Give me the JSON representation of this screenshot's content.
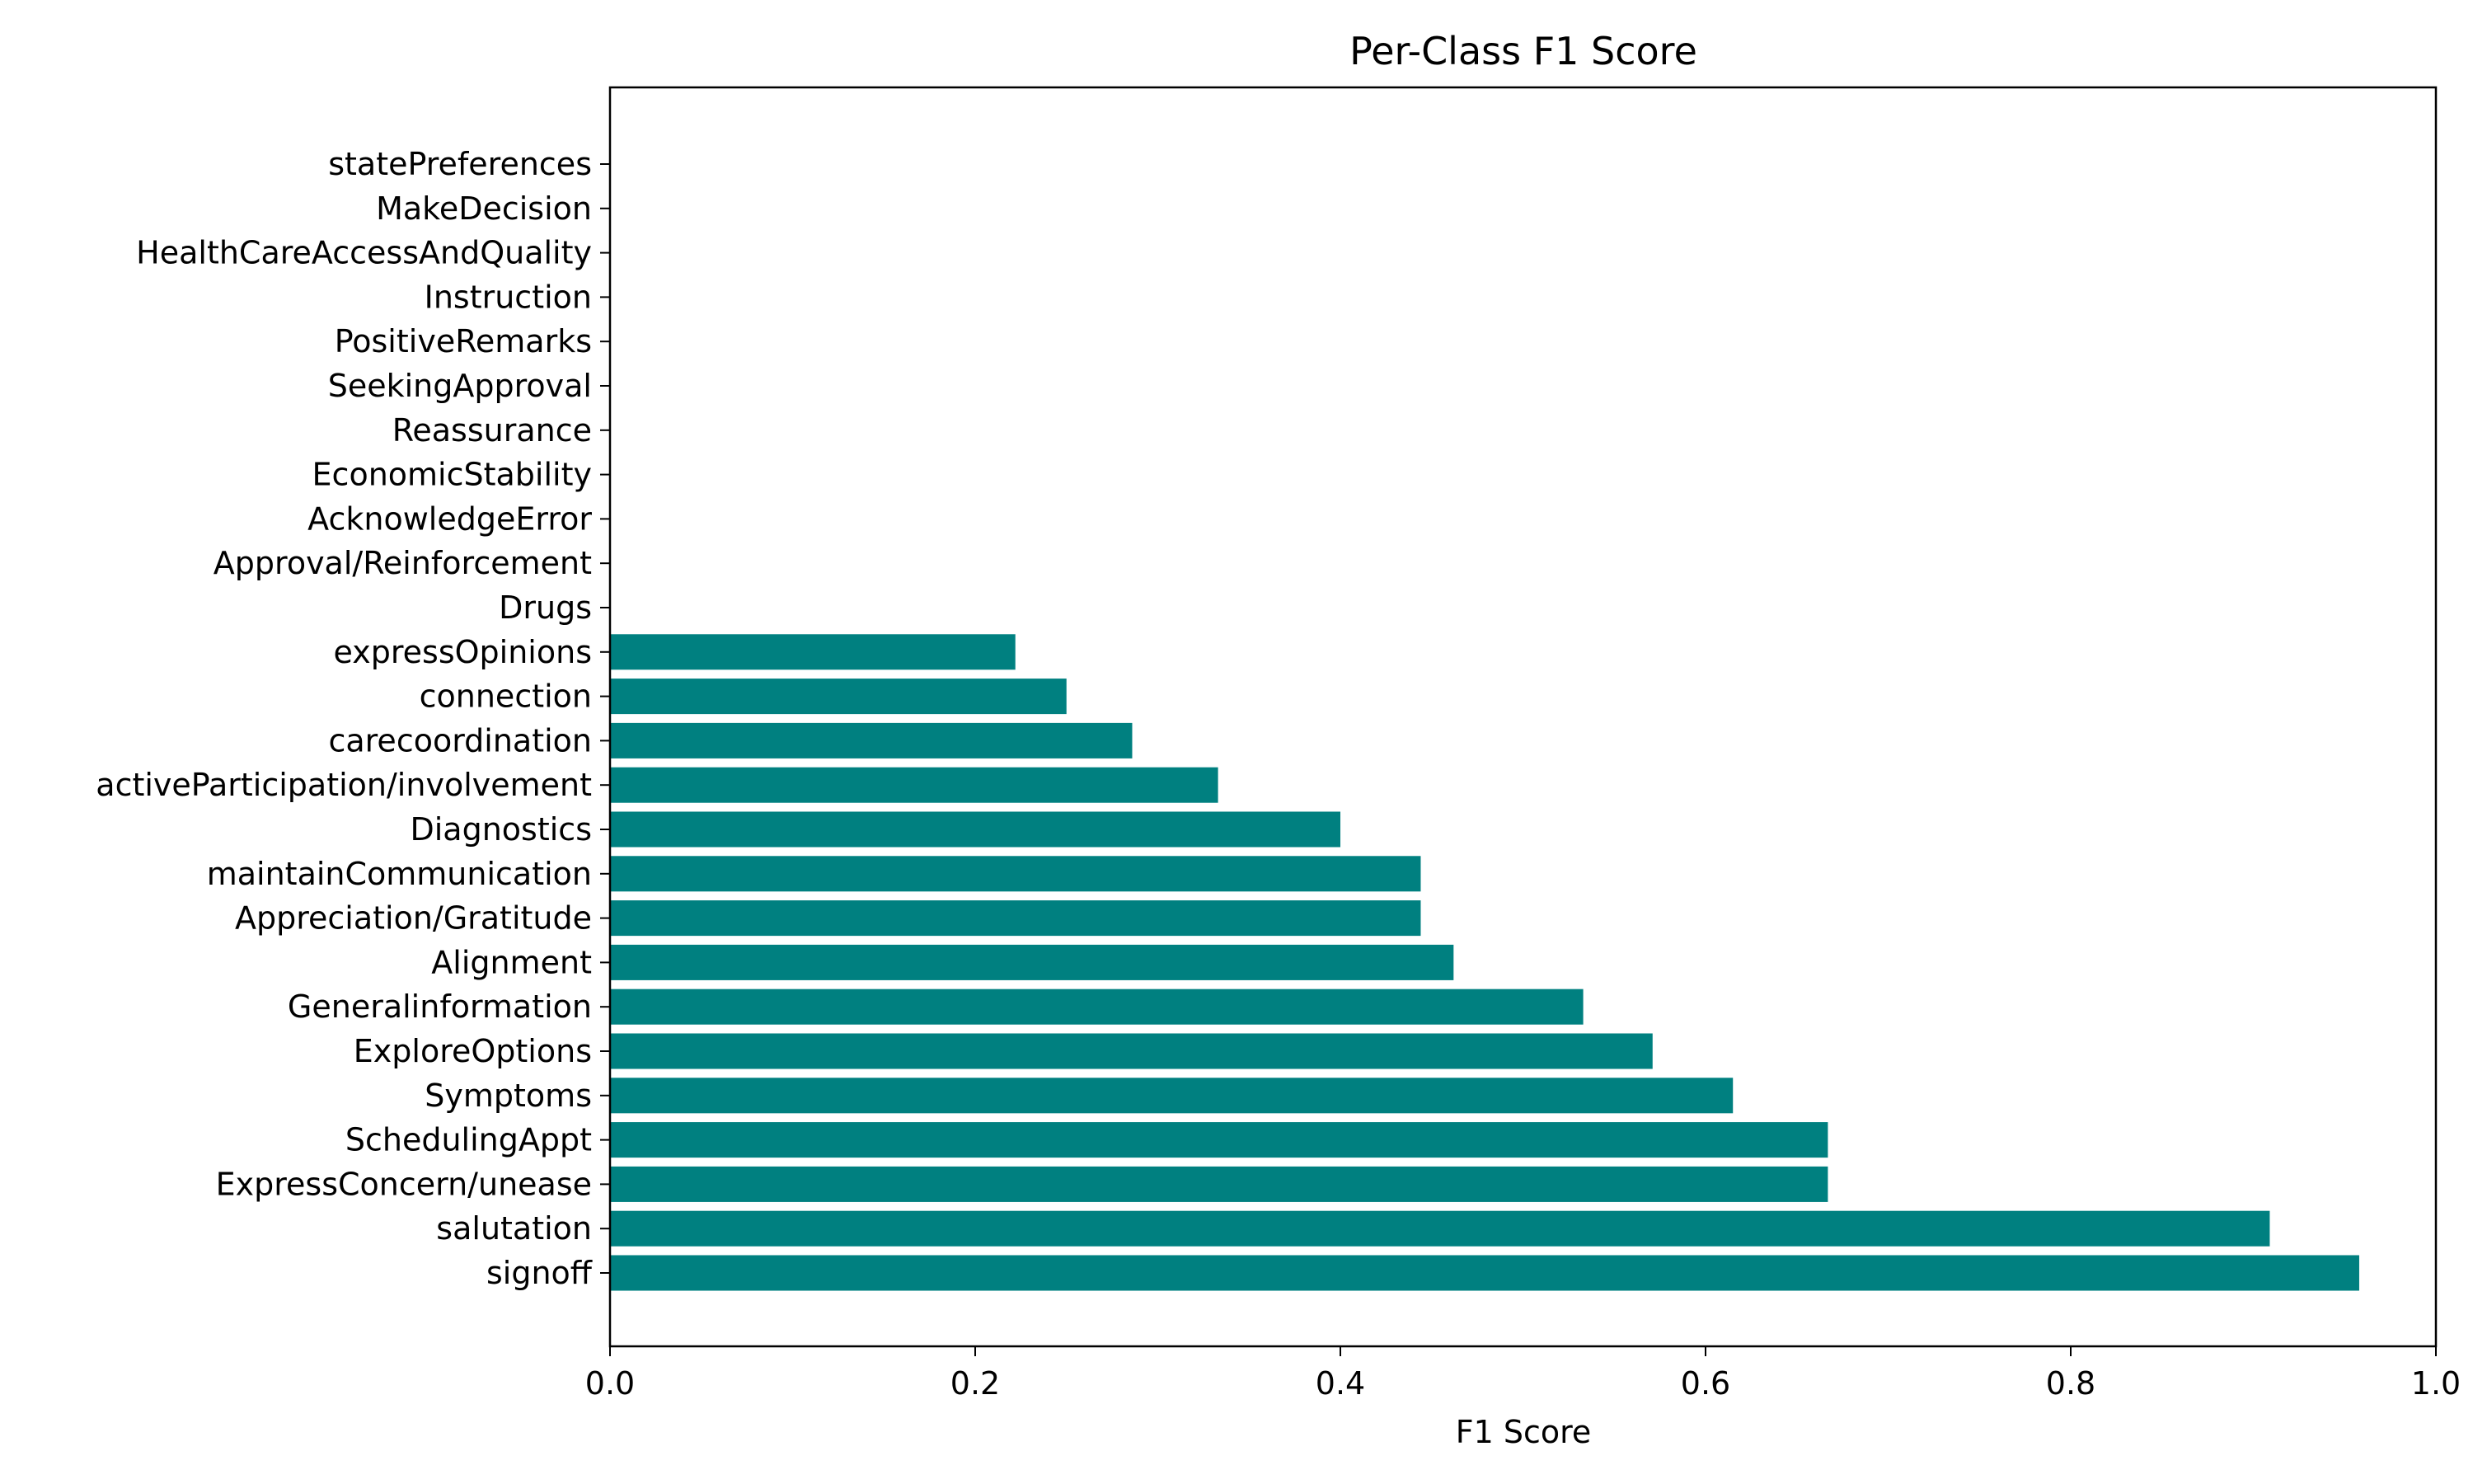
{
  "chart_data": {
    "type": "bar",
    "orientation": "horizontal",
    "title": "Per-Class F1 Score",
    "xlabel": "F1 Score",
    "ylabel": "",
    "xlim": [
      0,
      1.0
    ],
    "xticks": [
      "0.0",
      "0.2",
      "0.4",
      "0.6",
      "0.8",
      "1.0"
    ],
    "grid": false,
    "legend": "none",
    "bar_color": "#008080",
    "categories": [
      "signoff",
      "salutation",
      "ExpressConcern/unease",
      "SchedulingAppt",
      "Symptoms",
      "ExploreOptions",
      "Generalinformation",
      "Alignment",
      "Appreciation/Gratitude",
      "maintainCommunication",
      "Diagnostics",
      "activeParticipation/involvement",
      "carecoordination",
      "connection",
      "expressOpinions",
      "Drugs",
      "Approval/Reinforcement",
      "AcknowledgeError",
      "EconomicStability",
      "Reassurance",
      "SeekingApproval",
      "PositiveRemarks",
      "Instruction",
      "HealthCareAccessAndQuality",
      "MakeDecision",
      "statePreferences"
    ],
    "values": [
      0.958,
      0.909,
      0.667,
      0.667,
      0.615,
      0.571,
      0.533,
      0.462,
      0.444,
      0.444,
      0.4,
      0.333,
      0.286,
      0.25,
      0.222,
      0,
      0,
      0,
      0,
      0,
      0,
      0,
      0,
      0,
      0,
      0
    ]
  }
}
